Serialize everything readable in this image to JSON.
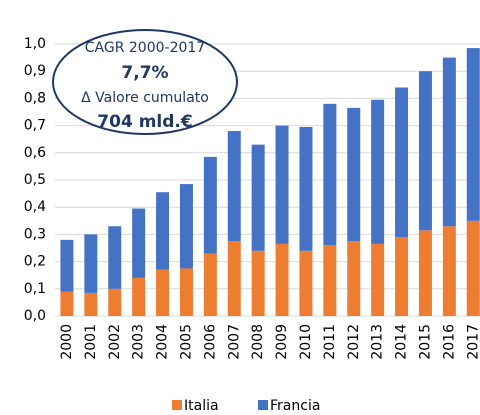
{
  "chart_data": {
    "type": "stacked_bar",
    "categories": [
      "2000",
      "2001",
      "2002",
      "2003",
      "2004",
      "2005",
      "2006",
      "2007",
      "2008",
      "2009",
      "2010",
      "2011",
      "2012",
      "2013",
      "2014",
      "2015",
      "2016",
      "2017"
    ],
    "series": [
      {
        "name": "Italia",
        "color": "#ed7d31",
        "values": [
          0.09,
          0.085,
          0.1,
          0.14,
          0.17,
          0.175,
          0.23,
          0.275,
          0.24,
          0.265,
          0.24,
          0.26,
          0.275,
          0.265,
          0.29,
          0.315,
          0.33,
          0.35
        ]
      },
      {
        "name": "Francia",
        "color": "#4472c4",
        "values": [
          0.19,
          0.215,
          0.23,
          0.255,
          0.285,
          0.31,
          0.355,
          0.405,
          0.39,
          0.435,
          0.455,
          0.52,
          0.49,
          0.53,
          0.55,
          0.585,
          0.62,
          0.635
        ]
      }
    ],
    "ylim": [
      0,
      1.0
    ],
    "yticks": [
      {
        "value": 0,
        "label": "0,0"
      },
      {
        "value": 0.1,
        "label": "0,1"
      },
      {
        "value": 0.2,
        "label": "0,2"
      },
      {
        "value": 0.3,
        "label": "0,3"
      },
      {
        "value": 0.4,
        "label": "0,4"
      },
      {
        "value": 0.5,
        "label": "0,5"
      },
      {
        "value": 0.6,
        "label": "0,6"
      },
      {
        "value": 0.7,
        "label": "0,7"
      },
      {
        "value": 0.8,
        "label": "0,8"
      },
      {
        "value": 0.9,
        "label": "0,9"
      },
      {
        "value": 1.0,
        "label": "1,0"
      }
    ],
    "grid": true,
    "legend": "bottom",
    "annotations": [
      "CAGR 2000-2017",
      "7,7%",
      "Δ Valore cumulato",
      "704 mld.€"
    ]
  }
}
